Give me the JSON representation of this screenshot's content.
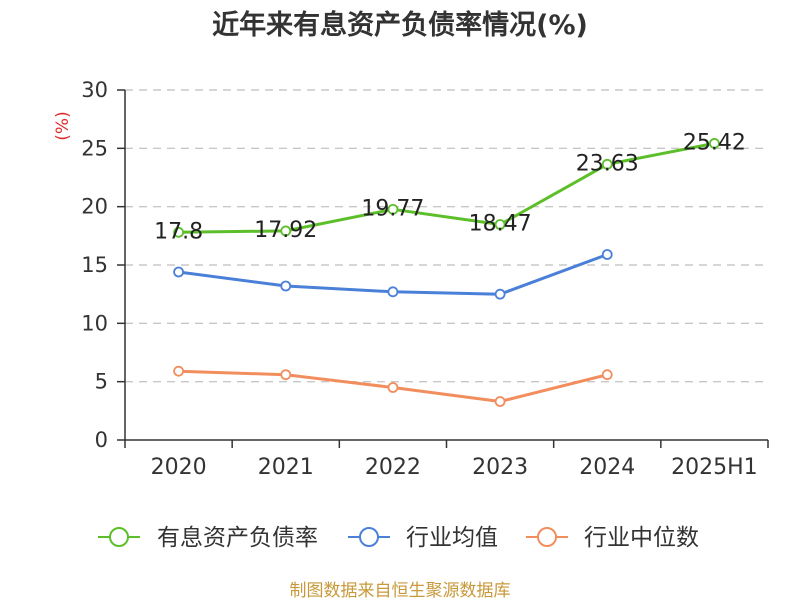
{
  "chart_data": {
    "type": "line",
    "title": "近年来有息资产负债率情况(%)",
    "ylabel": "(%)",
    "categories": [
      "2020",
      "2021",
      "2022",
      "2023",
      "2024",
      "2025H1"
    ],
    "ylim": [
      0,
      30
    ],
    "yticks": [
      0,
      5,
      10,
      15,
      20,
      25,
      30
    ],
    "grid": true,
    "legend_position": "bottom",
    "series": [
      {
        "name": "有息资产负债率",
        "color": "#5cbf2a",
        "show_data_labels": true,
        "values": [
          17.8,
          17.92,
          19.77,
          18.47,
          23.63,
          25.42
        ]
      },
      {
        "name": "行业均值",
        "color": "#4b80d8",
        "show_data_labels": false,
        "values": [
          14.4,
          13.2,
          12.7,
          12.5,
          15.9,
          null
        ]
      },
      {
        "name": "行业中位数",
        "color": "#f28e5d",
        "show_data_labels": false,
        "values": [
          5.9,
          5.6,
          4.5,
          3.3,
          5.6,
          null
        ]
      }
    ]
  },
  "footer": {
    "source_note": "制图数据来自恒生聚源数据库"
  }
}
